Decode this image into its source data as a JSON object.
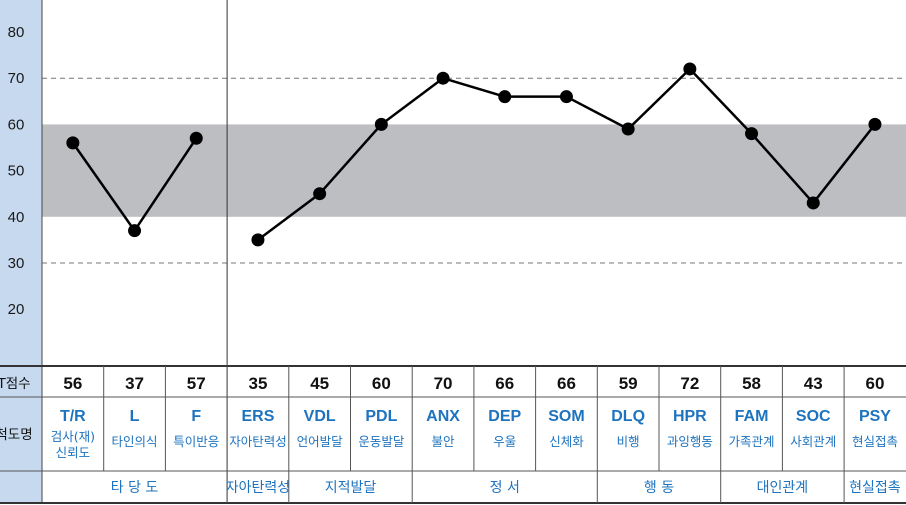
{
  "chart_data": {
    "type": "line",
    "ylim": [
      10,
      88
    ],
    "yticks": [
      20,
      30,
      40,
      50,
      60,
      70,
      80
    ],
    "normal_band": [
      40,
      60
    ],
    "dashed_gridlines": [
      30,
      70
    ],
    "row_labels": {
      "score": "T점수",
      "scale": "척도명"
    },
    "scales": [
      {
        "code": "T/R",
        "name": [
          "검사(재)",
          "신뢰도"
        ],
        "value": 56
      },
      {
        "code": "L",
        "name": [
          "타인의식"
        ],
        "value": 37
      },
      {
        "code": "F",
        "name": [
          "특이반응"
        ],
        "value": 57
      },
      {
        "code": "ERS",
        "name": [
          "자아탄력성"
        ],
        "value": 35
      },
      {
        "code": "VDL",
        "name": [
          "언어발달"
        ],
        "value": 45
      },
      {
        "code": "PDL",
        "name": [
          "운동발달"
        ],
        "value": 60
      },
      {
        "code": "ANX",
        "name": [
          "불안"
        ],
        "value": 70
      },
      {
        "code": "DEP",
        "name": [
          "우울"
        ],
        "value": 66
      },
      {
        "code": "SOM",
        "name": [
          "신체화"
        ],
        "value": 66
      },
      {
        "code": "DLQ",
        "name": [
          "비행"
        ],
        "value": 59
      },
      {
        "code": "HPR",
        "name": [
          "과잉행동"
        ],
        "value": 72
      },
      {
        "code": "FAM",
        "name": [
          "가족관계"
        ],
        "value": 58
      },
      {
        "code": "SOC",
        "name": [
          "사회관계"
        ],
        "value": 43
      },
      {
        "code": "PSY",
        "name": [
          "현실접촉"
        ],
        "value": 60
      }
    ],
    "groups": [
      {
        "label": "타 당 도",
        "start": 0,
        "end": 2
      },
      {
        "label": "자아탄력성",
        "start": 3,
        "end": 3
      },
      {
        "label": "지적발달",
        "start": 4,
        "end": 5
      },
      {
        "label": "정 서",
        "start": 6,
        "end": 8
      },
      {
        "label": "행 동",
        "start": 9,
        "end": 10
      },
      {
        "label": "대인관계",
        "start": 11,
        "end": 12
      },
      {
        "label": "현실접촉",
        "start": 13,
        "end": 13
      }
    ],
    "line_segments": [
      [
        0,
        2
      ],
      [
        3,
        13
      ]
    ],
    "colors": {
      "band": "#bdbec2",
      "left_bar": "#c6d9ef",
      "label_blue": "#1e73be",
      "line": "#000000"
    }
  }
}
